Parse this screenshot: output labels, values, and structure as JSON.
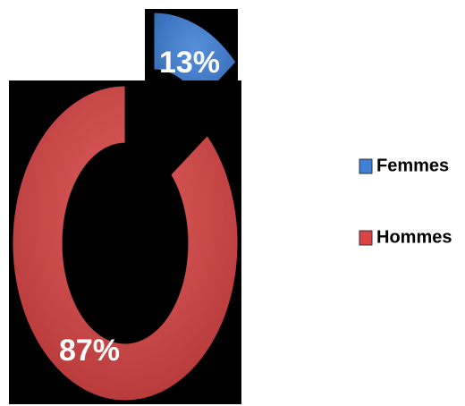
{
  "chart_data": {
    "type": "donut",
    "categories": [
      "Femmes",
      "Hommes"
    ],
    "values": [
      13,
      87
    ],
    "value_labels": [
      "13%",
      "87%"
    ],
    "colors": [
      "#3f7fd6",
      "#d94545"
    ],
    "legend": "right"
  }
}
